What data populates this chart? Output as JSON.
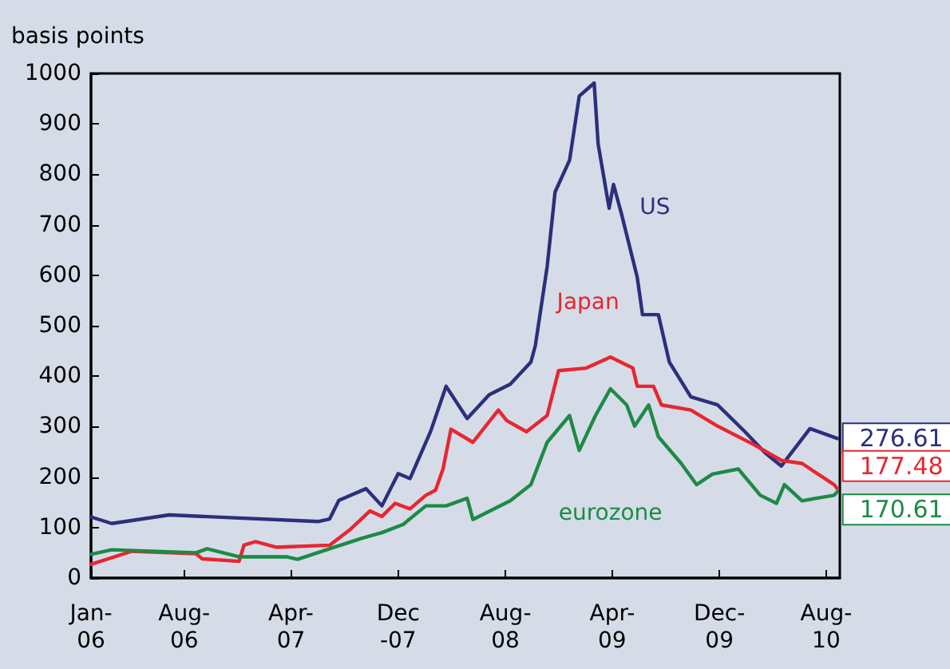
{
  "chart_data": {
    "type": "line",
    "ylabel": "basis points",
    "grid": false,
    "legend": false,
    "marker": "none",
    "line_style": "solid",
    "xlim": [
      "2006-01-01",
      "2010-09-01"
    ],
    "xticks": [
      {
        "value": "2006-01-01",
        "label": "Jan-\n06"
      },
      {
        "value": "2006-08-01",
        "label": "Aug-\n06"
      },
      {
        "value": "2007-04-01",
        "label": "Apr-\n07"
      },
      {
        "value": "2007-12-01",
        "label": "Dec\n-07"
      },
      {
        "value": "2008-08-01",
        "label": "Aug-\n08"
      },
      {
        "value": "2009-04-01",
        "label": "Apr-\n09"
      },
      {
        "value": "2009-12-01",
        "label": "Dec-\n09"
      },
      {
        "value": "2010-08-01",
        "label": "Aug-\n10"
      }
    ],
    "ylim": [
      0,
      1000
    ],
    "yticks": [
      0,
      100,
      200,
      300,
      400,
      500,
      600,
      700,
      800,
      900,
      1000
    ],
    "series": [
      {
        "name": "US",
        "color": "#2b2f7c",
        "x": [
          "2006-01-01",
          "2006-02-17",
          "2006-06-28",
          "2007-06-03",
          "2007-06-28",
          "2007-07-19",
          "2007-09-19",
          "2007-10-25",
          "2007-12-01",
          "2007-12-28",
          "2008-02-13",
          "2008-03-19",
          "2008-05-06",
          "2008-06-25",
          "2008-08-12",
          "2008-09-28",
          "2008-10-08",
          "2008-11-04",
          "2008-11-22",
          "2008-12-25",
          "2009-01-16",
          "2009-02-19",
          "2009-02-28",
          "2009-03-25",
          "2009-04-04",
          "2009-04-22",
          "2009-05-28",
          "2009-06-09",
          "2009-07-15",
          "2009-08-09",
          "2009-09-27",
          "2009-11-27",
          "2010-01-28",
          "2010-03-15",
          "2010-04-21",
          "2010-06-25",
          "2010-08-26"
        ],
        "values": [
          121,
          108,
          125,
          112,
          117,
          154,
          177,
          143,
          207,
          197,
          291,
          380,
          316,
          363,
          384,
          428,
          460,
          617,
          765,
          828,
          955,
          981,
          860,
          733,
          780,
          722,
          596,
          522,
          522,
          428,
          359,
          343,
          290,
          248,
          222,
          296,
          276.61
        ],
        "value_labels": [
          null,
          null,
          null,
          null,
          null,
          null,
          null,
          null,
          null,
          null,
          null,
          null,
          null,
          null,
          null,
          null,
          null,
          null,
          null,
          null,
          null,
          null,
          null,
          null,
          null,
          null,
          null,
          null,
          null,
          null,
          null,
          null,
          null,
          null,
          null,
          null,
          "276.61"
        ]
      },
      {
        "name": "Japan",
        "color": "#e8262f",
        "x": [
          "2006-01-01",
          "2006-04-04",
          "2006-08-28",
          "2006-09-11",
          "2006-12-04",
          "2006-12-15",
          "2007-01-10",
          "2007-02-26",
          "2007-06-28",
          "2007-08-15",
          "2007-09-28",
          "2007-10-25",
          "2007-11-24",
          "2007-12-28",
          "2008-02-02",
          "2008-02-24",
          "2008-03-12",
          "2008-03-30",
          "2008-05-19",
          "2008-07-16",
          "2008-08-04",
          "2008-09-18",
          "2008-11-04",
          "2008-11-30",
          "2009-02-01",
          "2009-03-28",
          "2009-05-18",
          "2009-05-28",
          "2009-07-04",
          "2009-07-22",
          "2009-09-27",
          "2009-11-27",
          "2010-02-18",
          "2010-04-21",
          "2010-06-07",
          "2010-08-19",
          "2010-08-26"
        ],
        "values": [
          27,
          53,
          48,
          38,
          33,
          65,
          72,
          61,
          65,
          97,
          133,
          122,
          148,
          137,
          164,
          174,
          216,
          295,
          269,
          333,
          312,
          290,
          322,
          411,
          416,
          438,
          416,
          380,
          380,
          343,
          333,
          301,
          264,
          233,
          227,
          185,
          177.48
        ],
        "value_labels": [
          null,
          null,
          null,
          null,
          null,
          null,
          null,
          null,
          null,
          null,
          null,
          null,
          null,
          null,
          null,
          null,
          null,
          null,
          null,
          null,
          null,
          null,
          null,
          null,
          null,
          null,
          null,
          null,
          null,
          null,
          null,
          null,
          null,
          null,
          null,
          null,
          "177.48"
        ]
      },
      {
        "name": "eurozone",
        "color": "#1d8a45",
        "x": [
          "2006-01-01",
          "2006-02-17",
          "2006-08-28",
          "2006-09-22",
          "2006-12-04",
          "2007-03-22",
          "2007-04-16",
          "2007-06-28",
          "2007-09-10",
          "2007-10-25",
          "2007-12-12",
          "2008-02-02",
          "2008-03-19",
          "2008-05-06",
          "2008-05-19",
          "2008-06-25",
          "2008-08-12",
          "2008-09-28",
          "2008-11-04",
          "2008-12-25",
          "2009-01-16",
          "2009-02-22",
          "2009-03-28",
          "2009-05-04",
          "2009-05-22",
          "2009-06-23",
          "2009-07-15",
          "2009-09-05",
          "2009-10-10",
          "2009-11-15",
          "2010-01-13",
          "2010-03-04",
          "2010-04-10",
          "2010-04-28",
          "2010-06-07",
          "2010-08-19",
          "2010-08-26"
        ],
        "values": [
          47,
          56,
          50,
          58,
          42,
          42,
          37,
          58,
          79,
          90,
          106,
          143,
          143,
          158,
          116,
          132,
          153,
          185,
          269,
          322,
          253,
          322,
          375,
          343,
          301,
          343,
          280,
          227,
          185,
          206,
          216,
          164,
          148,
          185,
          153,
          164,
          170.61
        ],
        "value_labels": [
          null,
          null,
          null,
          null,
          null,
          null,
          null,
          null,
          null,
          null,
          null,
          null,
          null,
          null,
          null,
          null,
          null,
          null,
          null,
          null,
          null,
          null,
          null,
          null,
          null,
          null,
          null,
          null,
          null,
          null,
          null,
          null,
          null,
          null,
          null,
          null,
          "170.61"
        ]
      }
    ]
  }
}
